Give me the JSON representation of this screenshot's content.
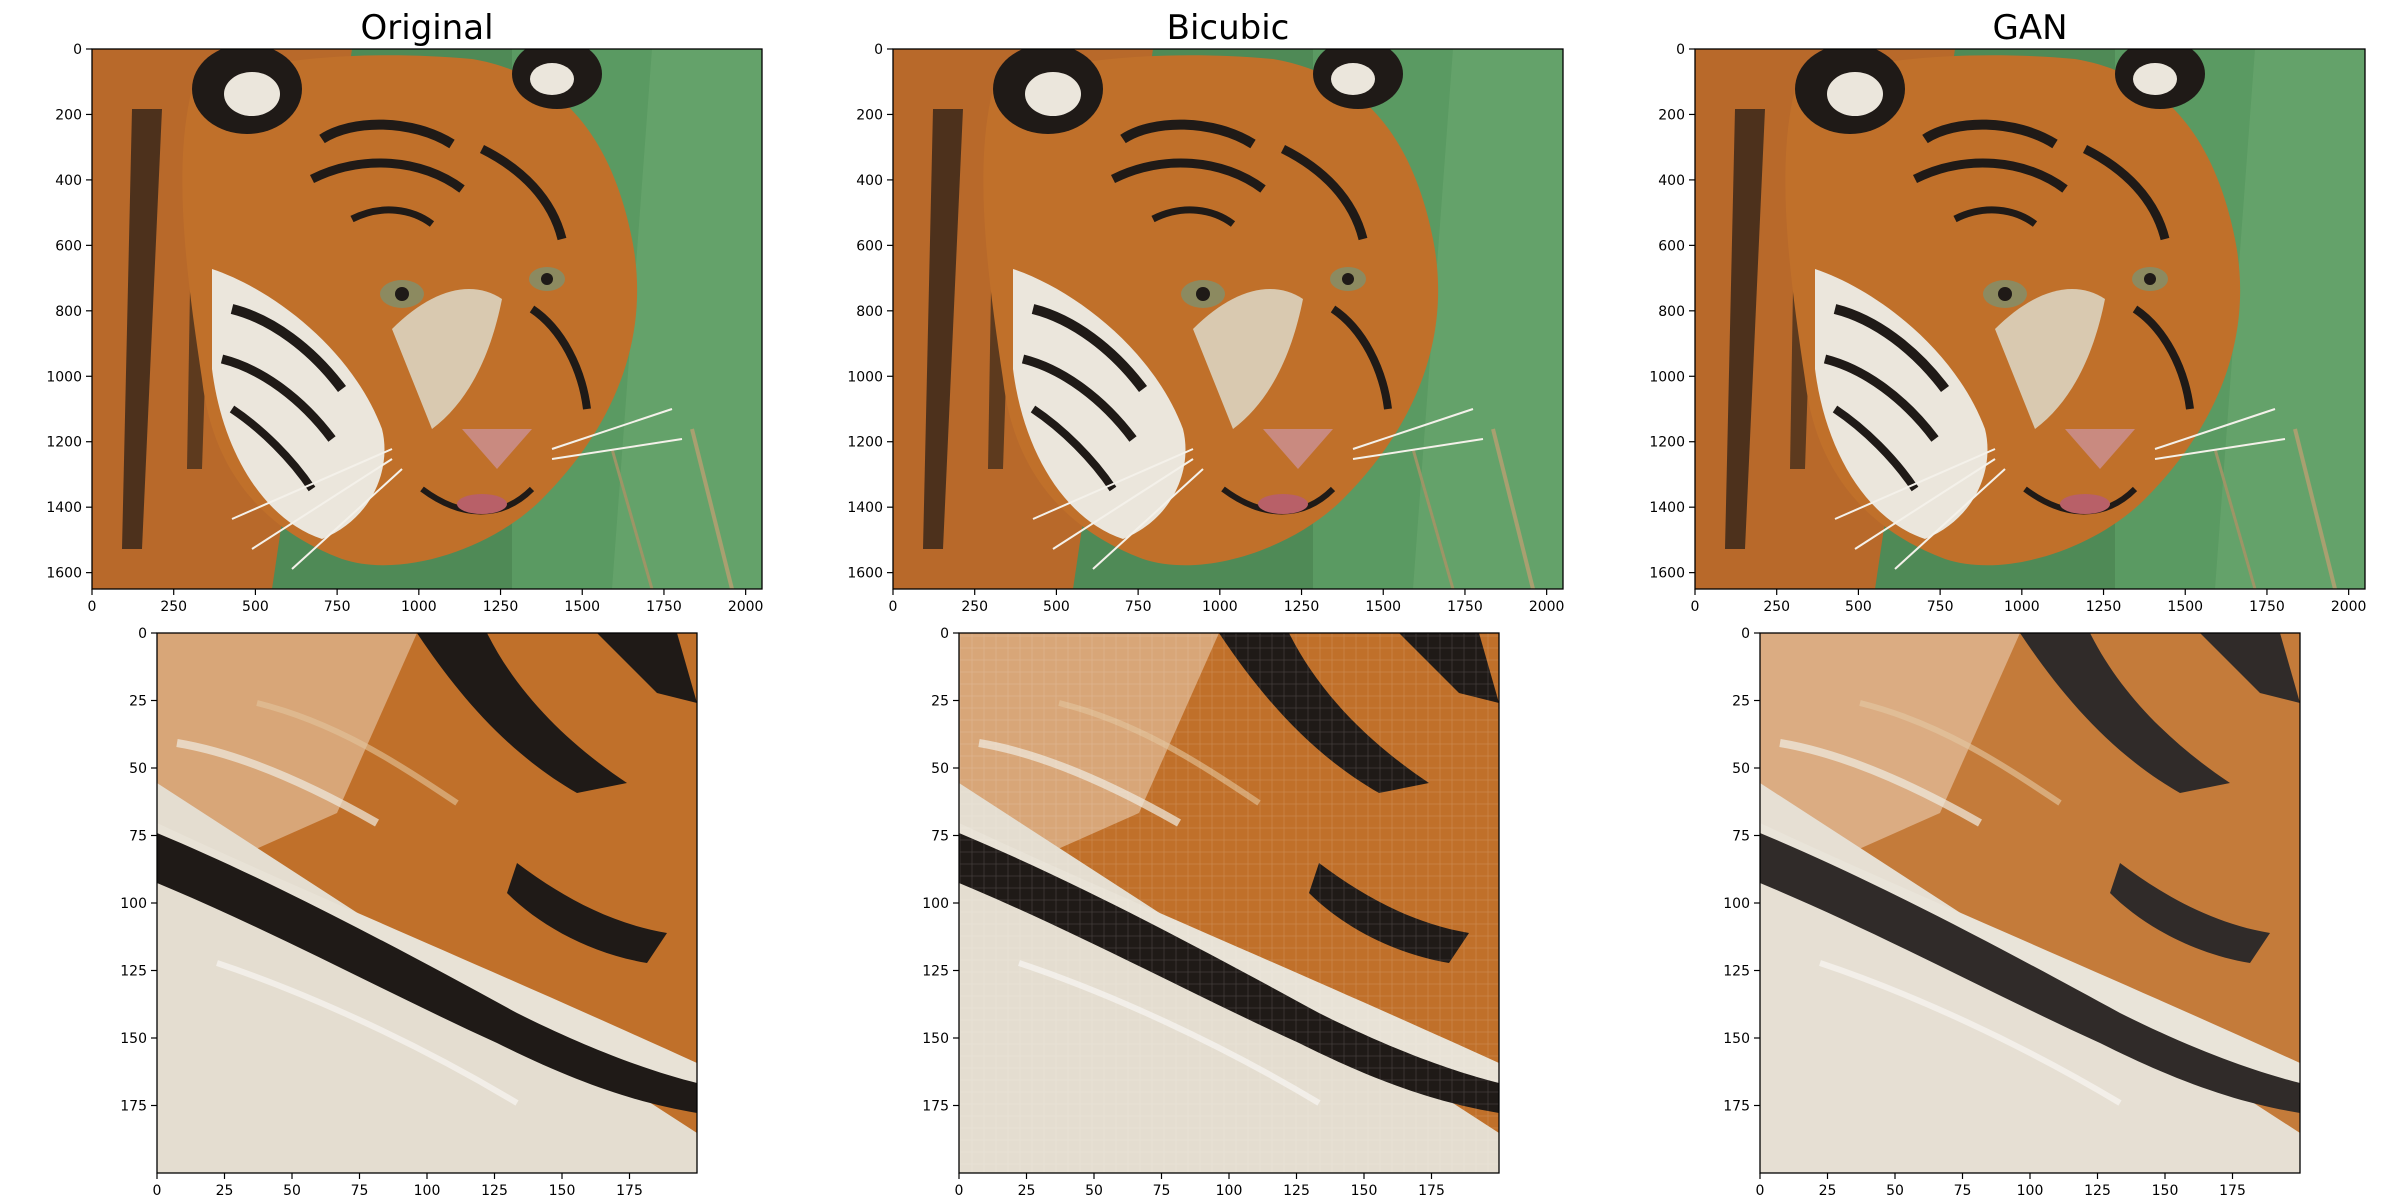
{
  "figure": {
    "panels": [
      {
        "title": "Original",
        "x_ticks": [
          "0",
          "250",
          "500",
          "750",
          "1000",
          "1250",
          "1500",
          "1750",
          "2000"
        ],
        "y_ticks": [
          "0",
          "200",
          "400",
          "600",
          "800",
          "1000",
          "1200",
          "1400",
          "1600"
        ]
      },
      {
        "title": "Bicubic",
        "x_ticks": [
          "0",
          "250",
          "500",
          "750",
          "1000",
          "1250",
          "1500",
          "1750",
          "2000"
        ],
        "y_ticks": [
          "0",
          "200",
          "400",
          "600",
          "800",
          "1000",
          "1200",
          "1400",
          "1600"
        ]
      },
      {
        "title": "GAN",
        "x_ticks": [
          "0",
          "250",
          "500",
          "750",
          "1000",
          "1250",
          "1500",
          "1750",
          "2000"
        ],
        "y_ticks": [
          "0",
          "200",
          "400",
          "600",
          "800",
          "1000",
          "1200",
          "1400",
          "1600"
        ]
      },
      {
        "title": "",
        "x_ticks": [
          "0",
          "25",
          "50",
          "75",
          "100",
          "125",
          "150",
          "175"
        ],
        "y_ticks": [
          "0",
          "25",
          "50",
          "75",
          "100",
          "125",
          "150",
          "175"
        ]
      },
      {
        "title": "",
        "x_ticks": [
          "0",
          "25",
          "50",
          "75",
          "100",
          "125",
          "150",
          "175"
        ],
        "y_ticks": [
          "0",
          "25",
          "50",
          "75",
          "100",
          "125",
          "150",
          "175"
        ]
      },
      {
        "title": "",
        "x_ticks": [
          "0",
          "25",
          "50",
          "75",
          "100",
          "125",
          "150",
          "175"
        ],
        "y_ticks": [
          "0",
          "25",
          "50",
          "75",
          "100",
          "125",
          "150",
          "175"
        ]
      }
    ],
    "colors": {
      "fur_orange": "#c0702a",
      "fur_dark_orange": "#8f4a18",
      "stripe_black": "#1f1a17",
      "fur_white": "#ebe6dc",
      "grass_green": "#4f8a56",
      "nose_pink": "#c98a80"
    }
  }
}
